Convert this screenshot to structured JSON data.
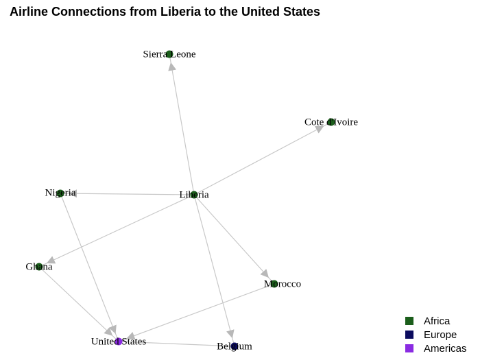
{
  "title": "Airline Connections from Liberia to the United States",
  "nodes": [
    {
      "label": "Sierra Leone"
    },
    {
      "label": "Cote d'Ivoire"
    },
    {
      "label": "Nigeria"
    },
    {
      "label": "Liberia"
    },
    {
      "label": "Ghana"
    },
    {
      "label": "Morocco"
    },
    {
      "label": "United States"
    },
    {
      "label": "Belgium"
    }
  ],
  "legend": [
    {
      "label": "Africa"
    },
    {
      "label": "Europe"
    },
    {
      "label": "Americas"
    }
  ]
}
